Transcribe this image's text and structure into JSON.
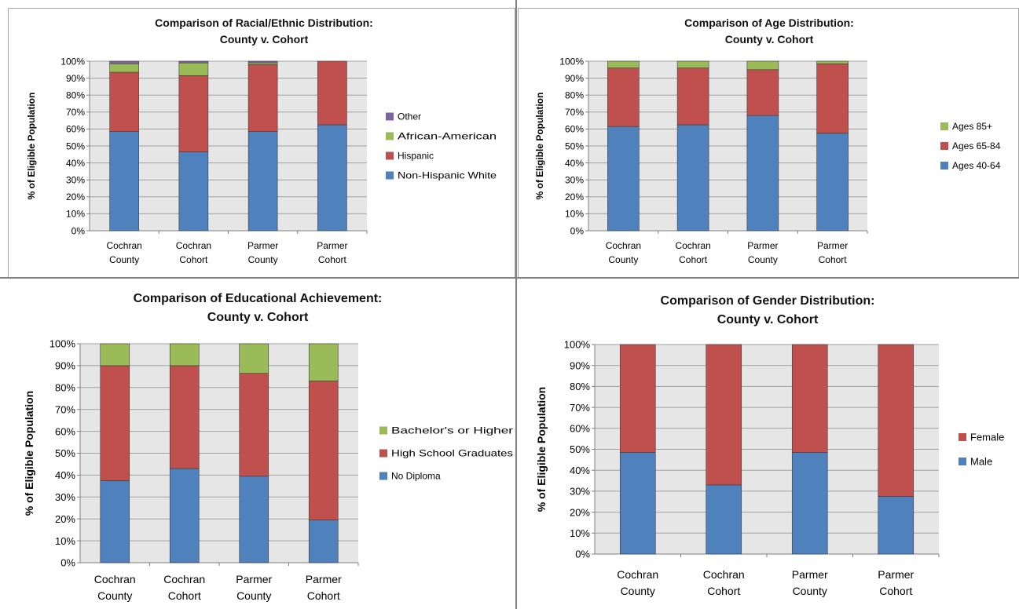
{
  "colors": {
    "blue": "#4f81bd",
    "red": "#c0504d",
    "green": "#9bbb59",
    "purple": "#8064a2",
    "plot_bg": "#e6e6e6",
    "grid": "#a0a0a0"
  },
  "chart_data": [
    {
      "type": "bar",
      "stacked": true,
      "title": [
        "Comparison of Racial/Ethnic Distribution:",
        "County v. Cohort"
      ],
      "ylabel": "% of Eligible Population",
      "ylim": [
        0,
        100
      ],
      "y_ticks": [
        "0%",
        "10%",
        "20%",
        "30%",
        "40%",
        "50%",
        "60%",
        "70%",
        "80%",
        "90%",
        "100%"
      ],
      "grid": true,
      "legend_position": "right",
      "categories": [
        [
          "Cochran",
          "County"
        ],
        [
          "Cochran",
          "Cohort"
        ],
        [
          "Parmer",
          "County"
        ],
        [
          "Parmer",
          "Cohort"
        ]
      ],
      "series": [
        {
          "name": "Non-Hispanic White",
          "color": "#4f81bd",
          "values": [
            58.5,
            46.5,
            58.5,
            62.5
          ]
        },
        {
          "name": "Hispanic",
          "color": "#c0504d",
          "values": [
            35.0,
            45.0,
            39.5,
            37.5
          ]
        },
        {
          "name": "African-American",
          "color": "#9bbb59",
          "values": [
            5.0,
            7.5,
            1.0,
            0.0
          ]
        },
        {
          "name": "Other",
          "color": "#8064a2",
          "values": [
            1.5,
            1.0,
            1.0,
            0.0
          ]
        }
      ],
      "legend_order": [
        "Other",
        "African-American",
        "Hispanic",
        "Non-Hispanic White"
      ]
    },
    {
      "type": "bar",
      "stacked": true,
      "title": [
        "Comparison of Age Distribution:",
        "County v. Cohort"
      ],
      "ylabel": "% of Eligible Population",
      "ylim": [
        0,
        100
      ],
      "y_ticks": [
        "0%",
        "10%",
        "20%",
        "30%",
        "40%",
        "50%",
        "60%",
        "70%",
        "80%",
        "90%",
        "100%"
      ],
      "grid": true,
      "legend_position": "right",
      "categories": [
        [
          "Cochran",
          "County"
        ],
        [
          "Cochran",
          "Cohort"
        ],
        [
          "Parmer",
          "County"
        ],
        [
          "Parmer",
          "Cohort"
        ]
      ],
      "series": [
        {
          "name": "Ages 40-64",
          "color": "#4f81bd",
          "values": [
            61.5,
            62.5,
            68.0,
            57.5
          ]
        },
        {
          "name": "Ages 65-84",
          "color": "#c0504d",
          "values": [
            34.5,
            33.5,
            27.0,
            41.0
          ]
        },
        {
          "name": "Ages 85+",
          "color": "#9bbb59",
          "values": [
            4.0,
            4.0,
            5.0,
            1.5
          ]
        }
      ],
      "legend_order": [
        "Ages 85+",
        "Ages 65-84",
        "Ages 40-64"
      ]
    },
    {
      "type": "bar",
      "stacked": true,
      "title": [
        "Comparison of Educational Achievement:",
        "County v. Cohort"
      ],
      "ylabel": "% of Eligible  Population",
      "ylim": [
        0,
        100
      ],
      "y_ticks": [
        "0%",
        "10%",
        "20%",
        "30%",
        "40%",
        "50%",
        "60%",
        "70%",
        "80%",
        "90%",
        "100%"
      ],
      "grid": true,
      "legend_position": "right",
      "categories": [
        [
          "Cochran",
          "County"
        ],
        [
          "Cochran",
          "Cohort"
        ],
        [
          "Parmer",
          "County"
        ],
        [
          "Parmer",
          "Cohort"
        ]
      ],
      "series": [
        {
          "name": "No Diploma",
          "color": "#4f81bd",
          "values": [
            37.5,
            43.0,
            39.5,
            19.5
          ]
        },
        {
          "name": "High School Graduates",
          "color": "#c0504d",
          "values": [
            52.5,
            47.0,
            47.0,
            63.5
          ]
        },
        {
          "name": "Bachelor's or Higher",
          "color": "#9bbb59",
          "values": [
            10.0,
            10.0,
            13.5,
            17.0
          ]
        }
      ],
      "legend_order": [
        "Bachelor's or Higher",
        "High School Graduates",
        "No Diploma"
      ]
    },
    {
      "type": "bar",
      "stacked": true,
      "title": [
        "Comparison of Gender Distribution:",
        "County v. Cohort"
      ],
      "ylabel": "% of Eligible Population",
      "ylim": [
        0,
        100
      ],
      "y_ticks": [
        "0%",
        "10%",
        "20%",
        "30%",
        "40%",
        "50%",
        "60%",
        "70%",
        "80%",
        "90%",
        "100%"
      ],
      "grid": true,
      "legend_position": "right",
      "categories": [
        [
          "Cochran",
          "County"
        ],
        [
          "Cochran",
          "Cohort"
        ],
        [
          "Parmer",
          "County"
        ],
        [
          "Parmer",
          "Cohort"
        ]
      ],
      "series": [
        {
          "name": "Male",
          "color": "#4f81bd",
          "values": [
            48.5,
            33.0,
            48.5,
            27.5
          ]
        },
        {
          "name": "Female",
          "color": "#c0504d",
          "values": [
            51.5,
            67.0,
            51.5,
            72.5
          ]
        }
      ],
      "legend_order": [
        "Female",
        "Male"
      ]
    }
  ]
}
